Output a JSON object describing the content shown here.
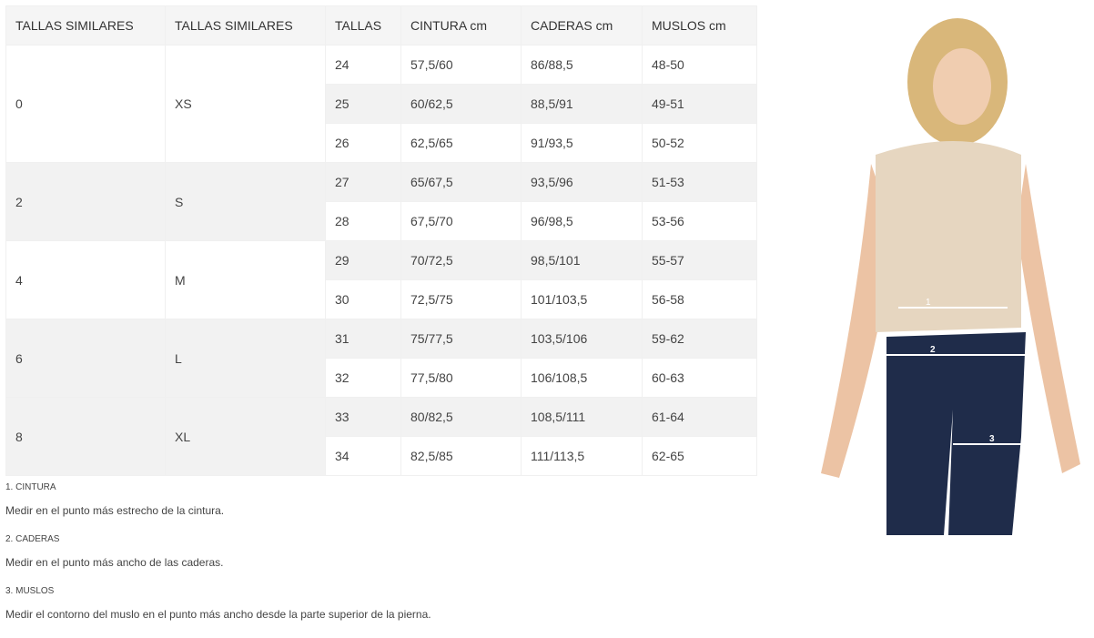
{
  "headers": [
    "TALLAS SIMILARES",
    "TALLAS SIMILARES",
    "TALLAS",
    "CINTURA cm",
    "CADERAS cm",
    "MUSLOS cm"
  ],
  "groups": [
    {
      "a": "0",
      "b": "XS"
    },
    {
      "a": "2",
      "b": "S"
    },
    {
      "a": "4",
      "b": "M"
    },
    {
      "a": "6",
      "b": "L"
    },
    {
      "a": "8",
      "b": "XL"
    }
  ],
  "rows": [
    [
      "24",
      "57,5/60",
      "86/88,5",
      "48-50"
    ],
    [
      "25",
      "60/62,5",
      "88,5/91",
      "49-51"
    ],
    [
      "26",
      "62,5/65",
      "91/93,5",
      "50-52"
    ],
    [
      "27",
      "65/67,5",
      "93,5/96",
      "51-53"
    ],
    [
      "28",
      "67,5/70",
      "96/98,5",
      "53-56"
    ],
    [
      "29",
      "70/72,5",
      "98,5/101",
      "55-57"
    ],
    [
      "30",
      "72,5/75",
      "101/103,5",
      "56-58"
    ],
    [
      "31",
      "75/77,5",
      "103,5/106",
      "59-62"
    ],
    [
      "32",
      "77,5/80",
      "106/108,5",
      "60-63"
    ],
    [
      "33",
      "80/82,5",
      "108,5/111",
      "61-64"
    ],
    [
      "34",
      "82,5/85",
      "111/113,5",
      "62-65"
    ]
  ],
  "notes": [
    {
      "title": "1. CINTURA",
      "text": "Medir en el punto más estrecho de la cintura."
    },
    {
      "title": "2. CADERAS",
      "text": "Medir en el punto más ancho de las caderas."
    },
    {
      "title": "3. MUSLOS",
      "text": "Medir el contorno del muslo en el punto más ancho desde la parte superior de la pierna."
    }
  ],
  "figure": {
    "labels": [
      "1",
      "2",
      "3"
    ]
  }
}
